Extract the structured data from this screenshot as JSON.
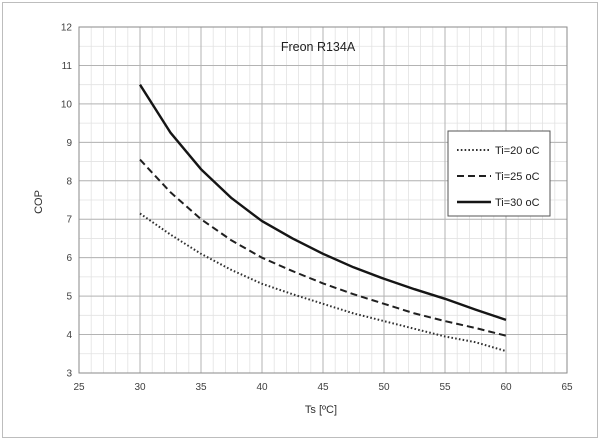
{
  "chart_data": {
    "type": "line",
    "title": "Freon R134A",
    "xlabel": "Ts [ºC]",
    "ylabel": "COP",
    "xlim": [
      25,
      65
    ],
    "ylim": [
      3,
      12
    ],
    "x_ticks": [
      25,
      30,
      35,
      40,
      45,
      50,
      55,
      60,
      65
    ],
    "y_ticks": [
      3,
      4,
      5,
      6,
      7,
      8,
      9,
      10,
      11,
      12
    ],
    "grid": true,
    "legend_position": "right",
    "x": [
      30,
      32.5,
      35,
      37.5,
      40,
      42.5,
      45,
      47.5,
      50,
      52.5,
      55,
      57.5,
      60
    ],
    "series": [
      {
        "name": "Ti=20 oC",
        "style": "dotted",
        "color": "#303030",
        "values": [
          7.15,
          6.6,
          6.1,
          5.68,
          5.32,
          5.05,
          4.8,
          4.55,
          4.35,
          4.15,
          3.95,
          3.8,
          3.57
        ]
      },
      {
        "name": "Ti=25 oC",
        "style": "dashed",
        "color": "#202020",
        "values": [
          8.55,
          7.7,
          7.0,
          6.45,
          6.0,
          5.65,
          5.33,
          5.05,
          4.8,
          4.55,
          4.35,
          4.17,
          3.97
        ]
      },
      {
        "name": "Ti=30 oC",
        "style": "solid",
        "color": "#151515",
        "values": [
          10.5,
          9.25,
          8.3,
          7.55,
          6.95,
          6.5,
          6.1,
          5.75,
          5.45,
          5.18,
          4.93,
          4.65,
          4.38
        ]
      }
    ]
  }
}
